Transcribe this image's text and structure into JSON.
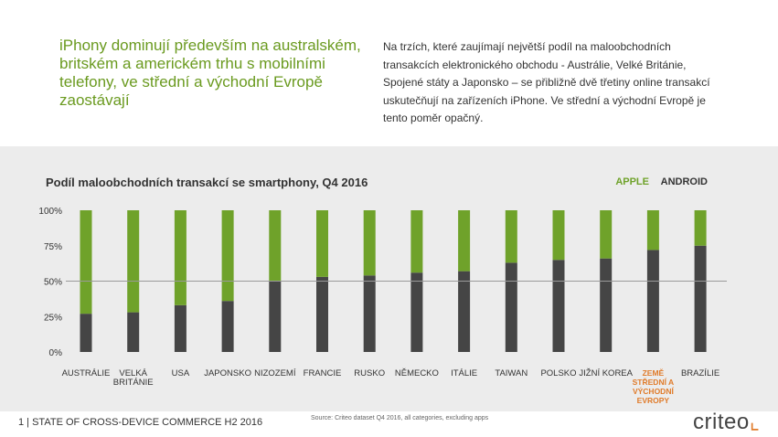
{
  "headline": "iPhony dominují především na australském, britském a americkém trhu s mobilními telefony, ve střední a východní Evropě zaostávají",
  "intro": "Na trzích,  které zaujímají největší podíl na maloobchodních transakcích elektronického obchodu - Austrálie, Velké Británie, Spojené státy  a Japonsko – se přibližně dvě třetiny online transakcí uskutečňují na zařízeních  iPhone. Ve střední a východní Evropě je tento poměr opačný.",
  "footer": "1  |  STATE OF CROSS-DEVICE COMMERCE H2 2016",
  "source": "Source: Criteo dataset Q4 2016, all categories, excluding apps",
  "logo": "criteo",
  "colors": {
    "apple": "#6fa22a",
    "android": "#454545",
    "highlight": "#e07b2a",
    "headline": "#6a9a1f"
  },
  "chart_data": {
    "type": "bar",
    "stacked": true,
    "title": "Podíl maloobchodních transakcí se smartphony, Q4 2016",
    "legend": [
      "APPLE",
      "ANDROID"
    ],
    "legend_position": "top-right",
    "categories": [
      "AUSTRÁLIE",
      "VELKÁ BRITÁNIE",
      "USA",
      "JAPONSKO",
      "NIZOZEMÍ",
      "FRANCIE",
      "RUSKO",
      "NĚMECKO",
      "ITÁLIE",
      "TAIWAN",
      "POLSKO",
      "JIŽNÍ KOREA",
      "ZEMĚ STŘEDNÍ A VÝCHODNÍ EVROPY",
      "BRAZÍLIE"
    ],
    "category_lines": [
      [
        "AUSTRÁLIE"
      ],
      [
        "VELKÁ",
        "BRITÁNIE"
      ],
      [
        "USA"
      ],
      [
        "JAPONSKO"
      ],
      [
        "NIZOZEMÍ"
      ],
      [
        "FRANCIE"
      ],
      [
        "RUSKO"
      ],
      [
        "NĚMECKO"
      ],
      [
        "ITÁLIE"
      ],
      [
        "TAIWAN"
      ],
      [
        "POLSKO"
      ],
      [
        "JIŽNÍ KOREA"
      ],
      [
        "ZEMĚ",
        "STŘEDNÍ A",
        "VÝCHODNÍ",
        "EVROPY"
      ],
      [
        "BRAZÍLIE"
      ]
    ],
    "highlighted_category": "ZEMĚ STŘEDNÍ A VÝCHODNÍ EVROPY",
    "series": [
      {
        "name": "ANDROID",
        "values": [
          27,
          28,
          33,
          36,
          50,
          53,
          54,
          56,
          57,
          63,
          65,
          66,
          72,
          75
        ]
      },
      {
        "name": "APPLE",
        "values": [
          73,
          72,
          67,
          64,
          50,
          47,
          46,
          44,
          43,
          37,
          35,
          34,
          28,
          25
        ]
      }
    ],
    "yticks": [
      "0%",
      "25%",
      "50%",
      "75%",
      "100%"
    ],
    "ylim": [
      0,
      100
    ],
    "reference_line": 50,
    "grid": false
  }
}
